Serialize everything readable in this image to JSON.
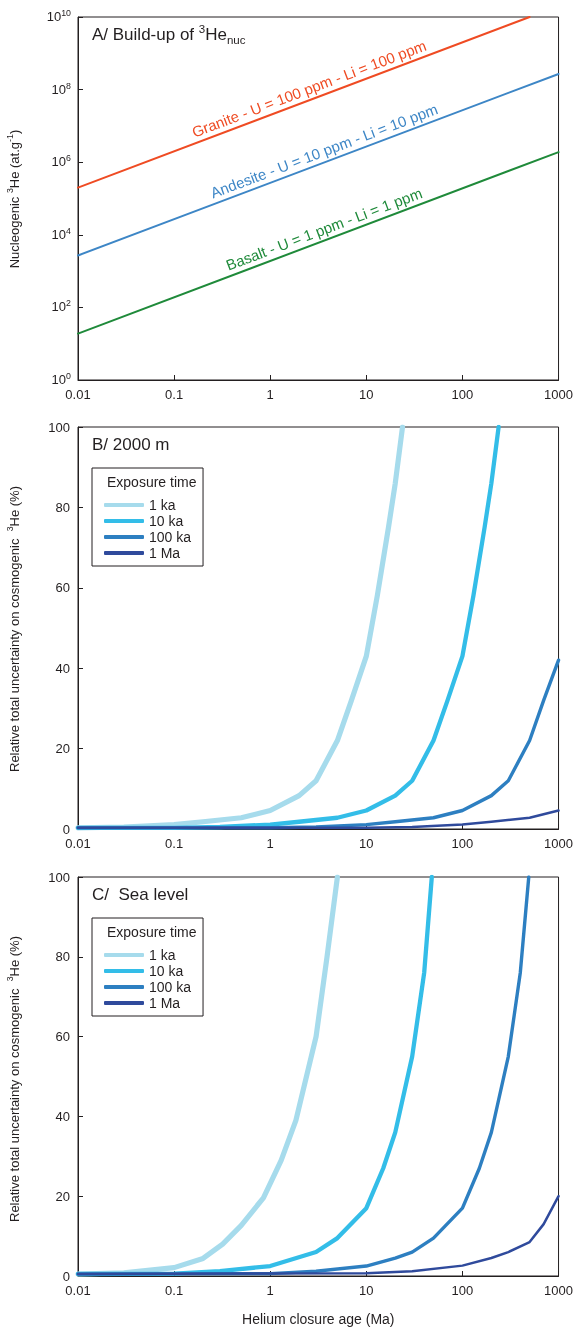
{
  "chart_data": [
    {
      "type": "line",
      "title": "A/ Build-up of $^{3}$He$_{nuc}$",
      "ylabel": "Nucleogenic $^{3}$He (at.g$^{-1}$)",
      "log": "xy",
      "xlim": [
        0.01,
        1000
      ],
      "xticks": [
        0.01,
        0.1,
        1,
        10,
        100,
        1000
      ],
      "ylim": [
        1,
        10000000000
      ],
      "yticks": [
        {
          "value": 1,
          "label": "10$^{0}$"
        },
        {
          "value": 100,
          "label": "10$^{2}$"
        },
        {
          "value": 10000,
          "label": "10$^{4}$"
        },
        {
          "value": 1000000,
          "label": "10$^{6}$"
        },
        {
          "value": 100000000,
          "label": "10$^{8}$"
        },
        {
          "value": 10000000000,
          "label": "10$^{10}$"
        }
      ],
      "grid": false,
      "legend": false,
      "marker": "none",
      "line_style": "solid",
      "series": [
        {
          "name": "Granite - U = 100 ppm - Li = 100 ppm",
          "color": "#ef4b23",
          "x": [
            0.01,
            500
          ],
          "values": [
            200000,
            10000000000
          ]
        },
        {
          "name": "Andesite - U = 10 ppm - Li = 10 ppm",
          "color": "#3d86c6",
          "x": [
            0.01,
            1000
          ],
          "values": [
            2700,
            270000000
          ]
        },
        {
          "name": "Basalt - U = 1 ppm - Li = 1 ppm",
          "color": "#1f8a3a",
          "x": [
            0.01,
            1000
          ],
          "values": [
            19,
            1900000
          ]
        }
      ]
    },
    {
      "type": "line",
      "title": "B/ 2000 m",
      "ylabel": "Relative total uncertainty on cosmogenic  $^{3}$He (%)",
      "log": "x",
      "xlim": [
        0.01,
        1000
      ],
      "xticks": [
        0.01,
        0.1,
        1,
        10,
        100,
        1000
      ],
      "ylim": [
        0,
        100
      ],
      "yticks": [
        0,
        20,
        40,
        60,
        80,
        100
      ],
      "grid": false,
      "legend": "top left",
      "legend_title": "Exposure time",
      "marker": "none",
      "line_style": "solid",
      "series": [
        {
          "name": "1 ka",
          "color": "#a6dbec",
          "x": [
            0.01,
            0.03,
            0.1,
            0.2,
            0.5,
            1,
            2,
            3,
            5,
            7,
            10,
            13,
            17,
            20,
            23.8
          ],
          "values": [
            0.3,
            0.5,
            1.1,
            1.8,
            2.8,
            4.6,
            8.3,
            12,
            22,
            32,
            43,
            58,
            75,
            86,
            100
          ]
        },
        {
          "name": "10 ka",
          "color": "#33bde8",
          "x": [
            0.01,
            0.1,
            0.3,
            1,
            2,
            5,
            10,
            20,
            30,
            50,
            70,
            100,
            130,
            170,
            200,
            238
          ],
          "values": [
            0.3,
            0.3,
            0.5,
            1.1,
            1.8,
            2.8,
            4.6,
            8.3,
            12,
            22,
            32,
            43,
            58,
            75,
            86,
            100
          ]
        },
        {
          "name": "100 ka",
          "color": "#2d7fc1",
          "x": [
            0.01,
            1,
            3,
            10,
            20,
            50,
            100,
            200,
            300,
            500,
            700,
            1000
          ],
          "values": [
            0.3,
            0.3,
            0.5,
            1.1,
            1.8,
            2.8,
            4.6,
            8.3,
            12,
            22,
            32,
            42
          ]
        },
        {
          "name": "1 Ma",
          "color": "#2f4a9c",
          "x": [
            0.01,
            10,
            30,
            100,
            200,
            500,
            1000
          ],
          "values": [
            0.3,
            0.3,
            0.5,
            1.1,
            1.8,
            2.8,
            4.6
          ]
        }
      ]
    },
    {
      "type": "line",
      "title": "C/  Sea level",
      "xlabel": "Helium closure age (Ma)",
      "ylabel": "Relative total uncertainty on cosmogenic  $^{3}$He (%)",
      "log": "x",
      "xlim": [
        0.01,
        1000
      ],
      "xticks": [
        0.01,
        0.1,
        1,
        10,
        100,
        1000
      ],
      "ylim": [
        0,
        100
      ],
      "yticks": [
        0,
        20,
        40,
        60,
        80,
        100
      ],
      "grid": false,
      "legend": "top left",
      "legend_title": "Exposure time",
      "marker": "none",
      "line_style": "solid",
      "series": [
        {
          "name": "1 ka",
          "color": "#a6dbec",
          "x": [
            0.01,
            0.03,
            0.1,
            0.2,
            0.32,
            0.5,
            0.85,
            1.3,
            1.85,
            3,
            3.9,
            5
          ],
          "values": [
            0.5,
            0.8,
            2.1,
            4.4,
            8,
            12.7,
            19.6,
            29,
            39,
            60,
            80,
            100
          ]
        },
        {
          "name": "10 ka",
          "color": "#33bde8",
          "x": [
            0.01,
            0.1,
            0.3,
            1,
            3,
            5,
            10,
            15,
            20,
            30,
            40,
            48
          ],
          "values": [
            0.5,
            0.6,
            1.2,
            2.5,
            6,
            9.5,
            17,
            27,
            36,
            55,
            76,
            100
          ]
        },
        {
          "name": "100 ka",
          "color": "#2d7fc1",
          "x": [
            0.01,
            1,
            3,
            10,
            20,
            30,
            50,
            100,
            150,
            200,
            300,
            400,
            490
          ],
          "values": [
            0.5,
            0.6,
            1.2,
            2.5,
            4.5,
            6,
            9.5,
            17,
            27,
            36,
            55,
            76,
            100
          ]
        },
        {
          "name": "1 Ma",
          "color": "#2f4a9c",
          "x": [
            0.01,
            10,
            30,
            100,
            200,
            300,
            500,
            700,
            1000
          ],
          "values": [
            0.5,
            0.7,
            1.2,
            2.6,
            4.5,
            6,
            8.5,
            13,
            20
          ]
        }
      ]
    }
  ]
}
